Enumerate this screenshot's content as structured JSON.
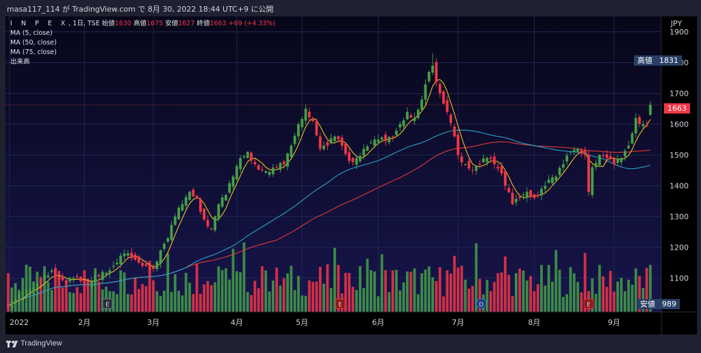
{
  "header": {
    "text": "masa117_114 が TradingView.com で 8月 30, 2022 18:44 UTC+9 に公開"
  },
  "legend": {
    "symbol": "I N P E X",
    "meta": ", 1日, TSE",
    "open_label": "始値",
    "open": "1630",
    "high_label": "高値",
    "high": "1675",
    "low_label": "安値",
    "low": "1627",
    "close_label": "終値",
    "close": "1663",
    "change": "+69 (+4.33%)",
    "indicators": [
      "MA (5, close)",
      "MA (50, close)",
      "MA (75, close)",
      "出来高"
    ]
  },
  "price_tags": {
    "high": {
      "label": "高値",
      "value": "1831"
    },
    "last": {
      "value": "1663"
    },
    "low": {
      "label": "安値",
      "value": "989"
    }
  },
  "footer": {
    "text": "TradingView"
  },
  "colors": {
    "up": "#43a047",
    "down": "#f23645",
    "ma5": "#f0c419",
    "ma50": "#26a5c9",
    "ma75": "#e53935",
    "tag_bg": "#2a3f66",
    "last_bg": "#f23645"
  },
  "chart_data": {
    "type": "candlestick",
    "currency": "JPY",
    "y_ticks": [
      1100,
      1200,
      1300,
      1400,
      1500,
      1600,
      1700,
      1800,
      1900
    ],
    "y_range": [
      990,
      1950
    ],
    "x_ticks": [
      "2022",
      "2月",
      "3月",
      "4月",
      "5月",
      "6月",
      "7月",
      "8月",
      "9月"
    ],
    "events": [
      {
        "label": "E",
        "month": "2月"
      },
      {
        "label": "E",
        "month": "5月"
      },
      {
        "label": "D",
        "month": "7月"
      },
      {
        "label": "E",
        "month": "8月"
      }
    ],
    "anchors": [
      {
        "i": 0,
        "c": 1010
      },
      {
        "i": 2,
        "c": 1030
      },
      {
        "i": 4,
        "c": 1050
      },
      {
        "i": 6,
        "c": 1060
      },
      {
        "i": 8,
        "c": 1080
      },
      {
        "i": 10,
        "c": 1110
      },
      {
        "i": 12,
        "c": 1125
      },
      {
        "i": 14,
        "c": 1095
      },
      {
        "i": 16,
        "c": 1085
      },
      {
        "i": 18,
        "c": 1100
      },
      {
        "i": 20,
        "c": 1090
      },
      {
        "i": 22,
        "c": 1080
      },
      {
        "i": 24,
        "c": 1110
      },
      {
        "i": 26,
        "c": 1120
      },
      {
        "i": 28,
        "c": 1125
      },
      {
        "i": 30,
        "c": 1150
      },
      {
        "i": 32,
        "c": 1180
      },
      {
        "i": 34,
        "c": 1165
      },
      {
        "i": 36,
        "c": 1150
      },
      {
        "i": 38,
        "c": 1140
      },
      {
        "i": 40,
        "c": 1130
      },
      {
        "i": 42,
        "c": 1190
      },
      {
        "i": 44,
        "c": 1230
      },
      {
        "i": 46,
        "c": 1300
      },
      {
        "i": 48,
        "c": 1340
      },
      {
        "i": 50,
        "c": 1380
      },
      {
        "i": 52,
        "c": 1360
      },
      {
        "i": 54,
        "c": 1290
      },
      {
        "i": 56,
        "c": 1260
      },
      {
        "i": 58,
        "c": 1340
      },
      {
        "i": 60,
        "c": 1370
      },
      {
        "i": 62,
        "c": 1430
      },
      {
        "i": 64,
        "c": 1490
      },
      {
        "i": 66,
        "c": 1510
      },
      {
        "i": 68,
        "c": 1470
      },
      {
        "i": 70,
        "c": 1450
      },
      {
        "i": 72,
        "c": 1445
      },
      {
        "i": 74,
        "c": 1460
      },
      {
        "i": 76,
        "c": 1470
      },
      {
        "i": 78,
        "c": 1530
      },
      {
        "i": 80,
        "c": 1600
      },
      {
        "i": 82,
        "c": 1650
      },
      {
        "i": 84,
        "c": 1610
      },
      {
        "i": 86,
        "c": 1520
      },
      {
        "i": 88,
        "c": 1530
      },
      {
        "i": 90,
        "c": 1560
      },
      {
        "i": 92,
        "c": 1530
      },
      {
        "i": 94,
        "c": 1480
      },
      {
        "i": 96,
        "c": 1490
      },
      {
        "i": 98,
        "c": 1520
      },
      {
        "i": 100,
        "c": 1540
      },
      {
        "i": 102,
        "c": 1550
      },
      {
        "i": 104,
        "c": 1545
      },
      {
        "i": 106,
        "c": 1560
      },
      {
        "i": 108,
        "c": 1600
      },
      {
        "i": 110,
        "c": 1640
      },
      {
        "i": 112,
        "c": 1620
      },
      {
        "i": 114,
        "c": 1680
      },
      {
        "i": 116,
        "c": 1770
      },
      {
        "i": 117,
        "c": 1790
      },
      {
        "i": 119,
        "c": 1700
      },
      {
        "i": 121,
        "c": 1640
      },
      {
        "i": 123,
        "c": 1560
      },
      {
        "i": 124,
        "c": 1500
      },
      {
        "i": 126,
        "c": 1470
      },
      {
        "i": 128,
        "c": 1450
      },
      {
        "i": 130,
        "c": 1470
      },
      {
        "i": 132,
        "c": 1490
      },
      {
        "i": 134,
        "c": 1470
      },
      {
        "i": 136,
        "c": 1440
      },
      {
        "i": 137,
        "c": 1400
      },
      {
        "i": 139,
        "c": 1340
      },
      {
        "i": 141,
        "c": 1360
      },
      {
        "i": 143,
        "c": 1380
      },
      {
        "i": 145,
        "c": 1360
      },
      {
        "i": 147,
        "c": 1390
      },
      {
        "i": 149,
        "c": 1420
      },
      {
        "i": 151,
        "c": 1430
      },
      {
        "i": 153,
        "c": 1470
      },
      {
        "i": 155,
        "c": 1510
      },
      {
        "i": 157,
        "c": 1520
      },
      {
        "i": 159,
        "c": 1500
      },
      {
        "i": 160,
        "c": 1380
      },
      {
        "i": 161,
        "c": 1460
      },
      {
        "i": 163,
        "c": 1500
      },
      {
        "i": 165,
        "c": 1490
      },
      {
        "i": 167,
        "c": 1470
      },
      {
        "i": 169,
        "c": 1490
      },
      {
        "i": 171,
        "c": 1530
      },
      {
        "i": 173,
        "c": 1620
      },
      {
        "i": 175,
        "c": 1600
      },
      {
        "i": 176,
        "c": 1594
      },
      {
        "i": 177,
        "c": 1663
      }
    ],
    "last_candle": {
      "open": 1630,
      "high": 1675,
      "low": 1627,
      "close": 1663
    },
    "period_high": 1831,
    "period_low": 989
  }
}
